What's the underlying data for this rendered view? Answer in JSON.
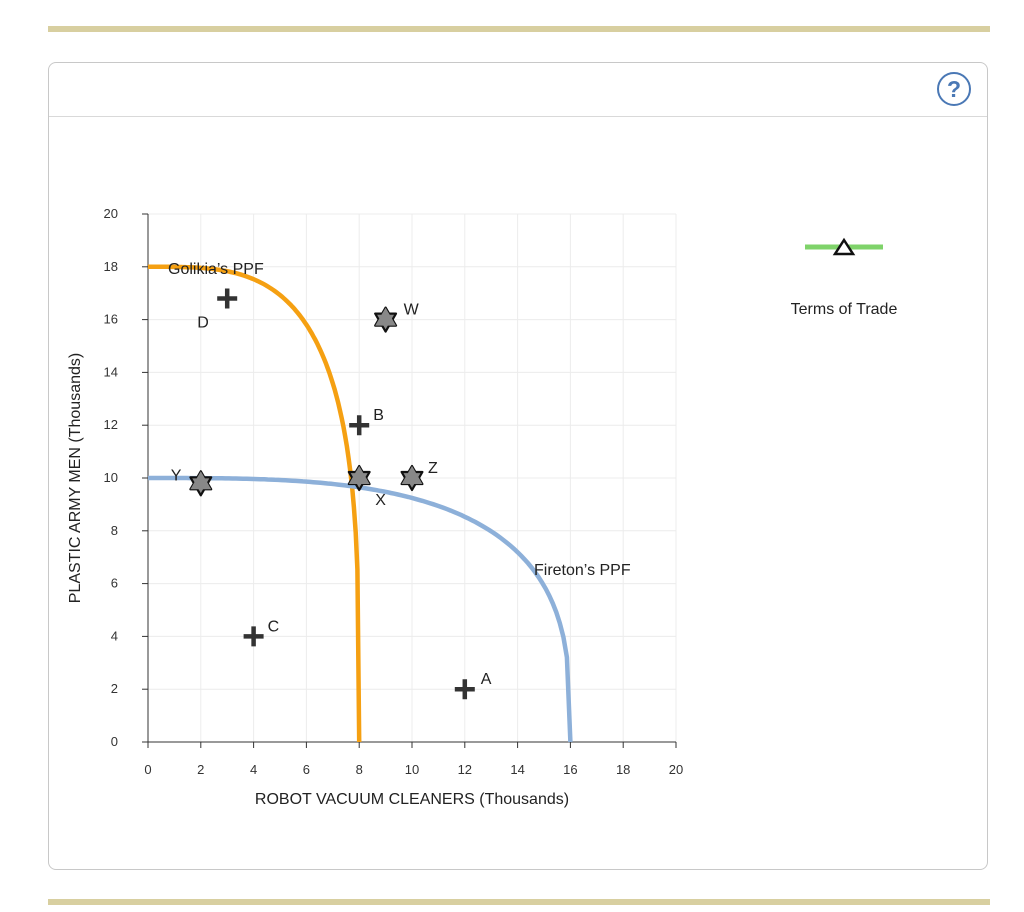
{
  "help_icon": "?",
  "chart_data": {
    "type": "line",
    "xlabel": "ROBOT VACUUM CLEANERS (Thousands)",
    "ylabel": "PLASTIC ARMY MEN (Thousands)",
    "xlim": [
      0,
      20
    ],
    "ylim": [
      0,
      20
    ],
    "xticks": [
      "0",
      "2",
      "4",
      "6",
      "8",
      "10",
      "12",
      "14",
      "16",
      "18",
      "20"
    ],
    "yticks": [
      "0",
      "2",
      "4",
      "6",
      "8",
      "10",
      "12",
      "14",
      "16",
      "18",
      "20"
    ],
    "grid": true,
    "series": [
      {
        "name": "Golikia’s PPF",
        "color": "#f5a012",
        "x_intercept": 8,
        "y_intercept": 18
      },
      {
        "name": "Fireton’s PPF",
        "color": "#8db0d9",
        "x_intercept": 16,
        "y_intercept": 10
      }
    ],
    "plus_points": [
      {
        "label": "A",
        "x": 12,
        "y": 2
      },
      {
        "label": "B",
        "x": 8,
        "y": 12
      },
      {
        "label": "C",
        "x": 4,
        "y": 4
      },
      {
        "label": "D",
        "x": 3,
        "y": 16.8
      }
    ],
    "star_points": [
      {
        "label": "W",
        "x": 9,
        "y": 16
      },
      {
        "label": "X",
        "x": 8,
        "y": 10
      },
      {
        "label": "Y",
        "x": 2,
        "y": 9.8
      },
      {
        "label": "Z",
        "x": 10,
        "y": 10
      }
    ],
    "legend": {
      "label": "Terms of Trade",
      "line_color": "#7fd36a",
      "marker": "triangle"
    }
  }
}
